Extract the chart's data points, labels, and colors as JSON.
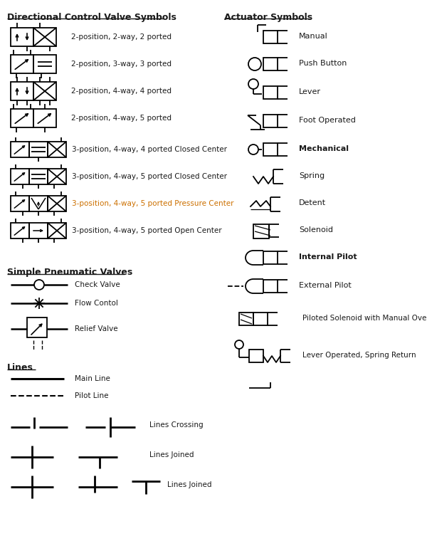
{
  "title_left": "Directional Control Valve Symbols",
  "title_right": "Actuator Symbols",
  "title_pneumatic": "Simple Pneumatic Valves",
  "title_lines": "Lines",
  "bg_color": "#ffffff",
  "text_color": "#1a1a1a",
  "orange_color": "#cc7000",
  "lw": 1.3,
  "left_labels": [
    "2-position, 2-way, 2 ported",
    "2-position, 3-way, 3 ported",
    "2-position, 4-way, 4 ported",
    "2-position, 4-way, 5 ported",
    "3-position, 4-way, 4 ported Closed Center",
    "3-position, 4-way, 5 ported Closed Center",
    "3-position, 4-way, 5 ported Pressure Center",
    "3-position, 4-way, 5 ported Open Center"
  ],
  "right_labels": [
    "Manual",
    "Push Button",
    "Lever",
    "Foot Operated",
    "Mechanical",
    "Spring",
    "Detent",
    "Solenoid",
    "Internal Pilot",
    "External Pilot",
    "Piloted Solenoid with Manual Override",
    "Lever Operated, Spring Return"
  ],
  "pneumatic_labels": [
    "Check Valve",
    "Flow Contol",
    "Relief Valve"
  ],
  "lines_labels": [
    "Main Line",
    "Pilot Line",
    "Lines Crossing",
    "Lines Joined",
    "Lines Joined"
  ]
}
